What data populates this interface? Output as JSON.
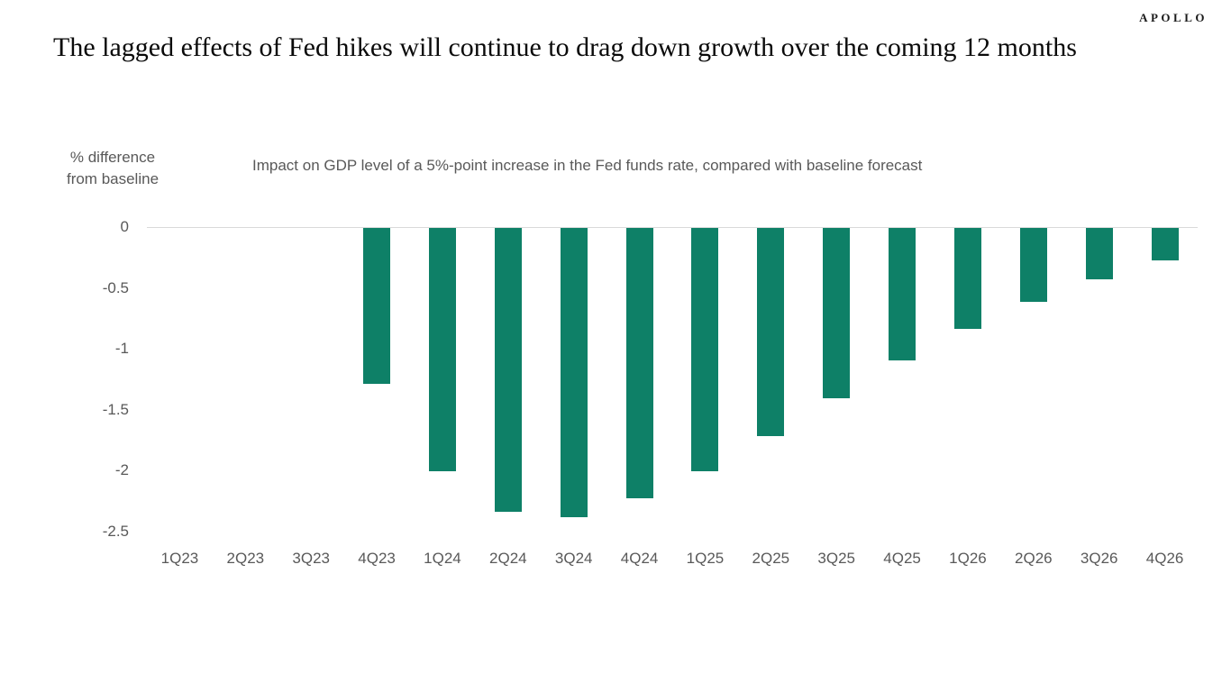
{
  "brand": {
    "logo": "APOLLO"
  },
  "title": "The lagged effects of Fed hikes will continue to drag down growth over the coming 12 months",
  "chart": {
    "y_axis_label_line1": "% difference",
    "y_axis_label_line2": "from baseline",
    "subtitle": "Impact on GDP level of a 5%-point increase in the Fed funds rate, compared with baseline forecast"
  },
  "chart_data": {
    "type": "bar",
    "title": "Impact on GDP level of a 5%-point increase in the Fed funds rate, compared with baseline forecast",
    "xlabel": "",
    "ylabel": "% difference from baseline",
    "categories": [
      "1Q23",
      "2Q23",
      "3Q23",
      "4Q23",
      "1Q24",
      "2Q24",
      "3Q24",
      "4Q24",
      "1Q25",
      "2Q25",
      "3Q25",
      "4Q25",
      "1Q26",
      "2Q26",
      "3Q26",
      "4Q26"
    ],
    "values": [
      0,
      0,
      0,
      -1.28,
      -2.0,
      -2.33,
      -2.38,
      -2.22,
      -2.0,
      -1.71,
      -1.4,
      -1.09,
      -0.83,
      -0.61,
      -0.42,
      -0.27
    ],
    "ylim": [
      -2.5,
      0
    ],
    "yticks": [
      0,
      -0.5,
      -1,
      -1.5,
      -2,
      -2.5
    ],
    "ytick_labels": [
      "0",
      "-0.5",
      "-1",
      "-1.5",
      "-2",
      "-2.5"
    ],
    "bar_color": "#0E8067",
    "axis_line_color": "#d9d9d9",
    "text_color": "#595959",
    "grid": false,
    "legend": "none"
  }
}
